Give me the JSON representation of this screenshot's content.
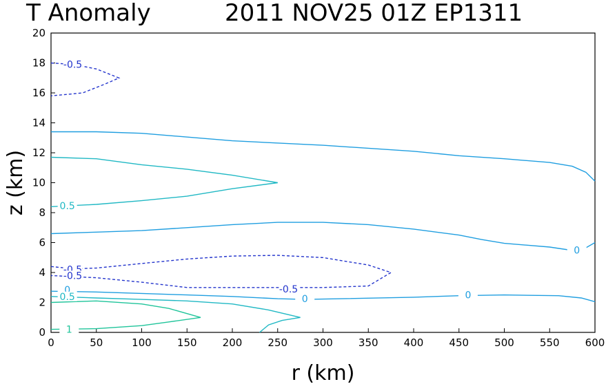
{
  "chart_data": {
    "type": "contour",
    "title_left": "T Anomaly",
    "title_right": "2011 NOV25 01Z   EP1311",
    "xlabel": "r (km)",
    "ylabel": "z (km)",
    "xlim": [
      0,
      600
    ],
    "ylim": [
      0,
      20
    ],
    "xticks": [
      0,
      50,
      100,
      150,
      200,
      250,
      300,
      350,
      400,
      450,
      500,
      550,
      600
    ],
    "yticks": [
      0,
      2,
      4,
      6,
      8,
      10,
      12,
      14,
      16,
      18,
      20
    ],
    "grid": false,
    "colors": {
      "neg": "#2233cc",
      "zero": "#1f9ee0",
      "half": "#20b8c4",
      "one": "#1fc49a"
    },
    "contours": [
      {
        "level": -0.5,
        "style": "dashed",
        "color": "neg",
        "points": [
          [
            0,
            18.0
          ],
          [
            25,
            17.9
          ],
          [
            50,
            17.6
          ],
          [
            75,
            17.0
          ],
          [
            60,
            16.6
          ],
          [
            35,
            16.0
          ],
          [
            0,
            15.8
          ]
        ],
        "labels": [
          {
            "text": "-0.5",
            "r": 24,
            "z": 17.9
          }
        ]
      },
      {
        "level": 0,
        "style": "solid",
        "color": "zero",
        "points": [
          [
            0,
            13.4
          ],
          [
            50,
            13.4
          ],
          [
            100,
            13.3
          ],
          [
            200,
            12.8
          ],
          [
            300,
            12.5
          ],
          [
            400,
            12.1
          ],
          [
            450,
            11.8
          ],
          [
            500,
            11.6
          ],
          [
            550,
            11.35
          ],
          [
            575,
            11.1
          ],
          [
            590,
            10.7
          ],
          [
            600,
            10.1
          ]
        ]
      },
      {
        "level": 0.5,
        "style": "solid",
        "color": "half",
        "points": [
          [
            0,
            11.7
          ],
          [
            50,
            11.6
          ],
          [
            100,
            11.2
          ],
          [
            150,
            10.9
          ],
          [
            200,
            10.5
          ],
          [
            250,
            10.0
          ],
          [
            200,
            9.6
          ],
          [
            150,
            9.1
          ],
          [
            100,
            8.8
          ],
          [
            50,
            8.55
          ],
          [
            0,
            8.4
          ]
        ],
        "labels": [
          {
            "text": "0.5",
            "r": 18,
            "z": 8.45
          }
        ]
      },
      {
        "level": 0,
        "style": "solid",
        "color": "zero",
        "points": [
          [
            0,
            6.6
          ],
          [
            50,
            6.7
          ],
          [
            100,
            6.8
          ],
          [
            150,
            7.0
          ],
          [
            200,
            7.2
          ],
          [
            250,
            7.35
          ],
          [
            300,
            7.35
          ],
          [
            350,
            7.2
          ],
          [
            400,
            6.9
          ],
          [
            450,
            6.5
          ],
          [
            475,
            6.2
          ],
          [
            500,
            5.95
          ],
          [
            550,
            5.7
          ],
          [
            578,
            5.45
          ],
          [
            590,
            5.65
          ],
          [
            600,
            6.0
          ]
        ],
        "labels": [
          {
            "text": "0",
            "r": 580,
            "z": 5.5
          }
        ]
      },
      {
        "level": -0.5,
        "style": "dashed",
        "color": "neg",
        "points": [
          [
            0,
            4.4
          ],
          [
            25,
            4.25
          ],
          [
            50,
            4.3
          ],
          [
            100,
            4.6
          ],
          [
            150,
            4.9
          ],
          [
            200,
            5.1
          ],
          [
            250,
            5.15
          ],
          [
            300,
            5.0
          ],
          [
            350,
            4.5
          ],
          [
            375,
            4.0
          ],
          [
            350,
            3.1
          ],
          [
            300,
            3.0
          ],
          [
            250,
            3.0
          ],
          [
            200,
            3.0
          ],
          [
            150,
            3.0
          ],
          [
            100,
            3.35
          ],
          [
            50,
            3.65
          ],
          [
            0,
            3.8
          ]
        ],
        "labels": [
          {
            "text": "-0.5",
            "r": 24,
            "z": 4.2
          },
          {
            "text": "-0.5",
            "r": 24,
            "z": 3.8
          },
          {
            "text": "-0.5",
            "r": 262,
            "z": 2.9
          }
        ]
      },
      {
        "level": 0,
        "style": "solid",
        "color": "zero",
        "points": [
          [
            0,
            2.75
          ],
          [
            50,
            2.7
          ],
          [
            100,
            2.6
          ],
          [
            150,
            2.5
          ],
          [
            200,
            2.4
          ],
          [
            250,
            2.25
          ],
          [
            280,
            2.2
          ],
          [
            320,
            2.25
          ],
          [
            400,
            2.35
          ],
          [
            450,
            2.45
          ],
          [
            500,
            2.5
          ],
          [
            560,
            2.45
          ],
          [
            585,
            2.3
          ],
          [
            600,
            2.05
          ]
        ],
        "labels": [
          {
            "text": "0",
            "r": 18,
            "z": 2.85
          },
          {
            "text": "0",
            "r": 280,
            "z": 2.25
          },
          {
            "text": "0",
            "r": 460,
            "z": 2.5
          }
        ]
      },
      {
        "level": 0.5,
        "style": "solid",
        "color": "half",
        "points": [
          [
            0,
            2.4
          ],
          [
            50,
            2.3
          ],
          [
            100,
            2.2
          ],
          [
            150,
            2.1
          ],
          [
            200,
            1.9
          ],
          [
            240,
            1.5
          ],
          [
            275,
            1.0
          ],
          [
            255,
            0.8
          ],
          [
            240,
            0.5
          ],
          [
            230,
            0.0
          ]
        ],
        "labels": [
          {
            "text": "0.5",
            "r": 18,
            "z": 2.4
          }
        ]
      },
      {
        "level": 1,
        "style": "solid",
        "color": "one",
        "points": [
          [
            0,
            2.0
          ],
          [
            50,
            2.1
          ],
          [
            100,
            1.9
          ],
          [
            130,
            1.6
          ],
          [
            165,
            1.0
          ],
          [
            130,
            0.7
          ],
          [
            100,
            0.45
          ],
          [
            50,
            0.25
          ],
          [
            0,
            0.2
          ]
        ],
        "labels": [
          {
            "text": "1",
            "r": 20,
            "z": 0.2
          }
        ]
      }
    ]
  }
}
